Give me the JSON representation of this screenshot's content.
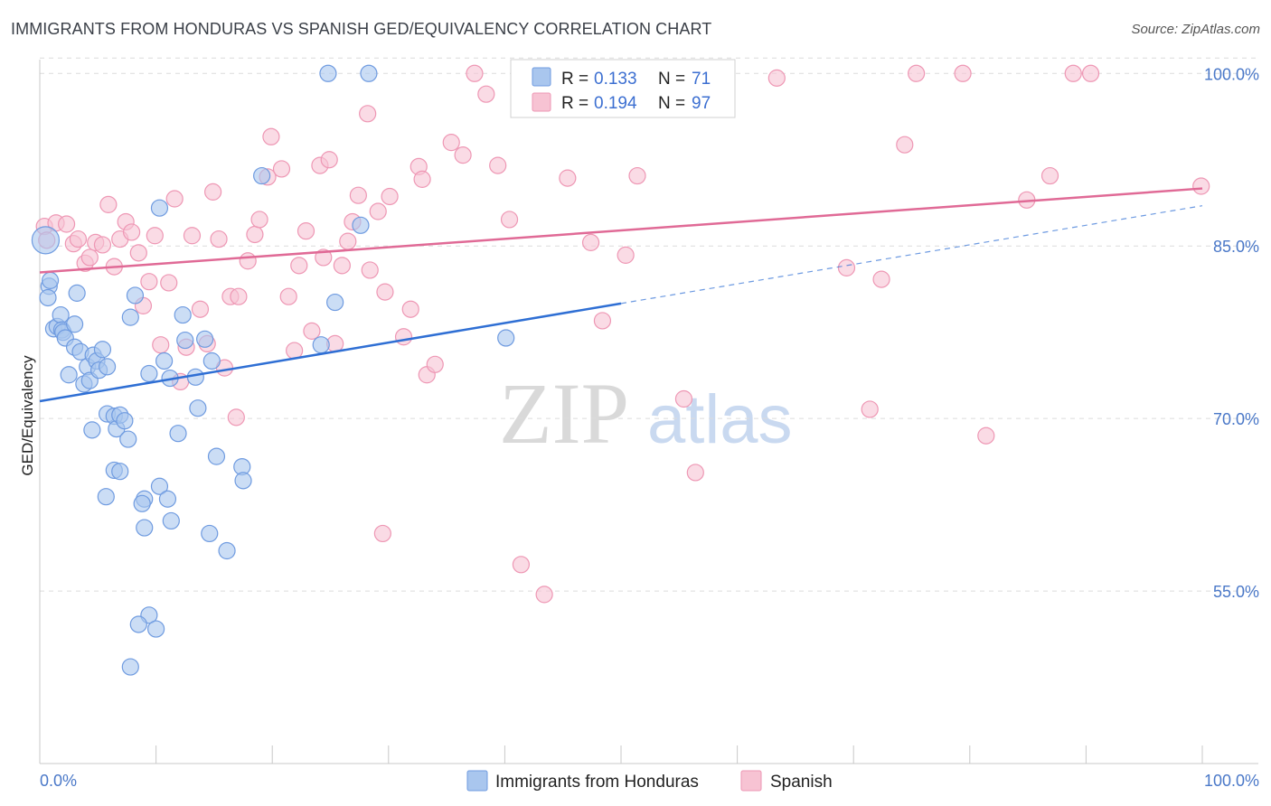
{
  "chart_data": {
    "type": "scatter",
    "title": "IMMIGRANTS FROM HONDURAS VS SPANISH GED/EQUIVALENCY CORRELATION CHART",
    "source": "Source: ZipAtlas.com",
    "xlabel": "",
    "ylabel": "GED/Equivalency",
    "xlim": [
      0,
      100
    ],
    "ylim": [
      40,
      101.2
    ],
    "x_tick_labels": [
      "0.0%",
      "100.0%"
    ],
    "y_ticks": [
      55,
      70,
      85,
      100
    ],
    "y_tick_labels": [
      "55.0%",
      "70.0%",
      "85.0%",
      "100.0%"
    ],
    "grid": true,
    "watermark": {
      "zip": "ZIP",
      "atlas": "atlas"
    },
    "colors": {
      "blue_fill": "#a9c6ee",
      "blue_stroke": "#6f9be0",
      "blue_line": "#2f6fd4",
      "pink_fill": "#f7c3d3",
      "pink_stroke": "#ee97b4",
      "pink_line": "#e06a96"
    },
    "legend": {
      "entries": [
        {
          "r_label": "R =",
          "r_value": "0.133",
          "n_label": "N =",
          "n_value": "71"
        },
        {
          "r_label": "R =",
          "r_value": "0.194",
          "n_label": "N =",
          "n_value": "97"
        }
      ]
    },
    "series": [
      {
        "name": "Immigrants from Honduras",
        "color": "blue",
        "trend": {
          "x0": 0,
          "y0": 71.5,
          "x1": 50,
          "y1": 80.0,
          "dash_to_x": 100,
          "dash_to_y": 88.5
        },
        "points": [
          [
            0.5,
            85.5
          ],
          [
            0.8,
            81.5
          ],
          [
            0.9,
            82.0
          ],
          [
            0.7,
            80.5
          ],
          [
            1.2,
            77.8
          ],
          [
            1.5,
            78.0
          ],
          [
            1.8,
            79.0
          ],
          [
            1.9,
            77.7
          ],
          [
            2.0,
            77.5
          ],
          [
            2.2,
            77.0
          ],
          [
            2.5,
            73.8
          ],
          [
            3.0,
            78.2
          ],
          [
            3.2,
            80.9
          ],
          [
            3.0,
            76.2
          ],
          [
            3.5,
            75.8
          ],
          [
            3.8,
            73.0
          ],
          [
            4.1,
            74.5
          ],
          [
            4.3,
            73.3
          ],
          [
            4.6,
            75.5
          ],
          [
            4.9,
            75.0
          ],
          [
            5.1,
            74.2
          ],
          [
            5.4,
            76.0
          ],
          [
            5.8,
            74.5
          ],
          [
            4.5,
            69.0
          ],
          [
            5.8,
            70.4
          ],
          [
            6.4,
            70.2
          ],
          [
            6.6,
            69.1
          ],
          [
            6.9,
            70.3
          ],
          [
            7.3,
            69.8
          ],
          [
            7.6,
            68.2
          ],
          [
            6.4,
            65.5
          ],
          [
            6.9,
            65.4
          ],
          [
            5.7,
            63.2
          ],
          [
            7.8,
            78.8
          ],
          [
            8.2,
            80.7
          ],
          [
            9.4,
            73.9
          ],
          [
            9.0,
            63.0
          ],
          [
            8.8,
            62.6
          ],
          [
            9.0,
            60.5
          ],
          [
            9.4,
            52.9
          ],
          [
            8.5,
            52.1
          ],
          [
            10.0,
            51.7
          ],
          [
            7.8,
            48.4
          ],
          [
            10.3,
            64.1
          ],
          [
            11.0,
            63.0
          ],
          [
            11.3,
            61.1
          ],
          [
            10.3,
            88.3
          ],
          [
            10.7,
            75.0
          ],
          [
            11.2,
            73.5
          ],
          [
            11.9,
            68.7
          ],
          [
            12.3,
            79.0
          ],
          [
            12.5,
            76.8
          ],
          [
            13.4,
            73.6
          ],
          [
            13.6,
            70.9
          ],
          [
            14.2,
            76.9
          ],
          [
            14.8,
            75.0
          ],
          [
            14.6,
            60.0
          ],
          [
            15.2,
            66.7
          ],
          [
            16.1,
            58.5
          ],
          [
            17.4,
            65.8
          ],
          [
            17.5,
            64.6
          ],
          [
            19.1,
            91.1
          ],
          [
            24.8,
            100.0
          ],
          [
            25.4,
            80.1
          ],
          [
            24.2,
            76.4
          ],
          [
            27.6,
            86.8
          ],
          [
            28.3,
            100.0
          ],
          [
            40.1,
            77.0
          ]
        ]
      },
      {
        "name": "Spanish",
        "color": "pink",
        "trend": {
          "x0": 0,
          "y0": 82.7,
          "x1": 100,
          "y1": 90.0
        },
        "points": [
          [
            0.4,
            86.7
          ],
          [
            0.6,
            85.5
          ],
          [
            1.4,
            87.0
          ],
          [
            2.3,
            86.9
          ],
          [
            2.9,
            85.2
          ],
          [
            3.3,
            85.6
          ],
          [
            3.9,
            83.5
          ],
          [
            4.3,
            84.0
          ],
          [
            4.8,
            85.3
          ],
          [
            5.4,
            85.1
          ],
          [
            5.9,
            88.6
          ],
          [
            6.4,
            83.2
          ],
          [
            6.9,
            85.6
          ],
          [
            7.4,
            87.1
          ],
          [
            7.9,
            86.2
          ],
          [
            8.5,
            84.4
          ],
          [
            8.9,
            79.8
          ],
          [
            9.4,
            81.9
          ],
          [
            9.9,
            85.9
          ],
          [
            10.4,
            76.4
          ],
          [
            11.1,
            81.8
          ],
          [
            11.6,
            89.1
          ],
          [
            12.1,
            73.2
          ],
          [
            12.6,
            76.2
          ],
          [
            13.1,
            85.9
          ],
          [
            13.8,
            79.5
          ],
          [
            14.4,
            76.5
          ],
          [
            14.9,
            89.7
          ],
          [
            15.4,
            85.6
          ],
          [
            15.9,
            74.4
          ],
          [
            16.4,
            80.6
          ],
          [
            17.1,
            80.6
          ],
          [
            16.9,
            70.1
          ],
          [
            17.9,
            83.7
          ],
          [
            18.5,
            86.0
          ],
          [
            18.9,
            87.3
          ],
          [
            19.6,
            91.0
          ],
          [
            19.9,
            94.5
          ],
          [
            20.8,
            91.7
          ],
          [
            21.4,
            80.6
          ],
          [
            21.9,
            75.9
          ],
          [
            22.3,
            83.3
          ],
          [
            22.9,
            86.3
          ],
          [
            23.4,
            77.6
          ],
          [
            24.1,
            92.0
          ],
          [
            24.4,
            84.0
          ],
          [
            24.9,
            92.5
          ],
          [
            25.4,
            76.5
          ],
          [
            26.0,
            83.3
          ],
          [
            26.5,
            85.4
          ],
          [
            26.9,
            87.1
          ],
          [
            27.4,
            89.4
          ],
          [
            28.2,
            96.5
          ],
          [
            28.4,
            82.9
          ],
          [
            29.1,
            88.0
          ],
          [
            29.7,
            81.0
          ],
          [
            30.1,
            89.3
          ],
          [
            31.3,
            77.1
          ],
          [
            31.9,
            79.5
          ],
          [
            32.6,
            91.9
          ],
          [
            32.9,
            90.8
          ],
          [
            33.3,
            73.8
          ],
          [
            34.0,
            74.7
          ],
          [
            35.4,
            94.0
          ],
          [
            36.4,
            92.9
          ],
          [
            37.4,
            100.0
          ],
          [
            38.4,
            98.2
          ],
          [
            39.4,
            92.0
          ],
          [
            40.4,
            87.3
          ],
          [
            41.4,
            57.3
          ],
          [
            42.4,
            97.0
          ],
          [
            43.4,
            54.7
          ],
          [
            44.4,
            100.0
          ],
          [
            45.4,
            90.9
          ],
          [
            47.4,
            85.3
          ],
          [
            48.4,
            78.5
          ],
          [
            50.4,
            84.2
          ],
          [
            51.4,
            91.1
          ],
          [
            52.4,
            100.0
          ],
          [
            55.4,
            71.7
          ],
          [
            56.4,
            65.3
          ],
          [
            58.4,
            100.0
          ],
          [
            63.4,
            99.6
          ],
          [
            69.4,
            83.1
          ],
          [
            71.4,
            70.8
          ],
          [
            72.4,
            82.1
          ],
          [
            74.4,
            93.8
          ],
          [
            75.4,
            100.0
          ],
          [
            79.4,
            100.0
          ],
          [
            81.4,
            68.5
          ],
          [
            84.9,
            89.0
          ],
          [
            86.9,
            91.1
          ],
          [
            88.9,
            100.0
          ],
          [
            90.4,
            100.0
          ],
          [
            99.9,
            90.2
          ],
          [
            29.5,
            60.0
          ]
        ]
      }
    ]
  },
  "bottom_legend": [
    {
      "label": "Immigrants from Honduras"
    },
    {
      "label": "Spanish"
    }
  ]
}
